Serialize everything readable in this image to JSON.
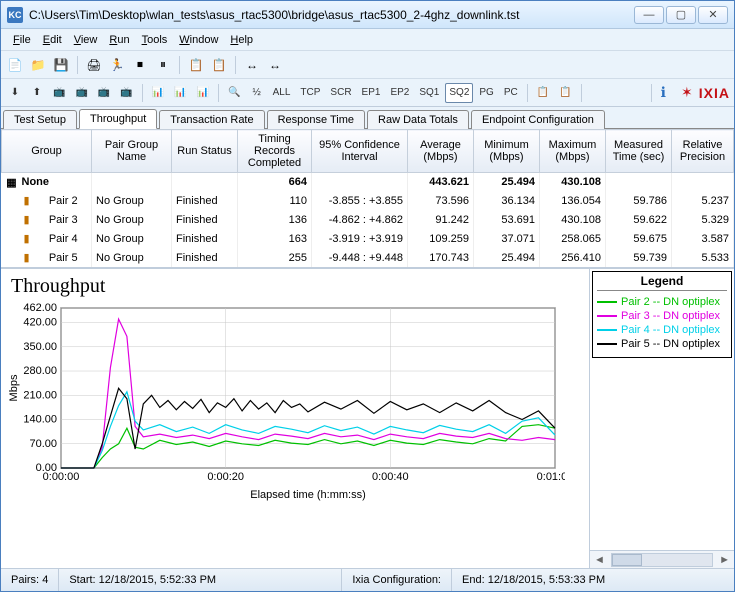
{
  "window": {
    "title": "C:\\Users\\Tim\\Desktop\\wlan_tests\\asus_rtac5300\\bridge\\asus_rtac5300_2-4ghz_downlink.tst",
    "app_abbrev": "KC"
  },
  "menu": {
    "items": [
      {
        "label": "File",
        "accel": "F"
      },
      {
        "label": "Edit",
        "accel": "E"
      },
      {
        "label": "View",
        "accel": "V"
      },
      {
        "label": "Run",
        "accel": "R"
      },
      {
        "label": "Tools",
        "accel": "T"
      },
      {
        "label": "Window",
        "accel": "W"
      },
      {
        "label": "Help",
        "accel": "H"
      }
    ]
  },
  "toolbar_icons": [
    "📄",
    "📁",
    "💾",
    "",
    "🖨",
    "🏃",
    "⏹",
    "⏸",
    "",
    "📋",
    "📋",
    "",
    "↔",
    "↔"
  ],
  "toolbar2": {
    "items": [
      "⬇",
      "⬆",
      "📺",
      "📺",
      "📺",
      "📺",
      "",
      "📊",
      "📊",
      "📊",
      "",
      "🔍",
      "½",
      "ALL",
      "TCP",
      "SCR",
      "EP1",
      "EP2",
      "SQ1",
      "SQ2",
      "PG",
      "PC",
      "",
      "📋",
      "📋",
      ""
    ],
    "selected_index": 19,
    "info_icon": "ℹ",
    "logo_text": "IXIA"
  },
  "tabs": {
    "items": [
      "Test Setup",
      "Throughput",
      "Transaction Rate",
      "Response Time",
      "Raw Data Totals",
      "Endpoint Configuration"
    ],
    "active": 1
  },
  "grid": {
    "columns": [
      "Group",
      "Pair Group Name",
      "Run Status",
      "Timing Records Completed",
      "95% Confidence Interval",
      "Average (Mbps)",
      "Minimum (Mbps)",
      "Maximum (Mbps)",
      "Measured Time (sec)",
      "Relative Precision"
    ],
    "totals": {
      "group": "None",
      "timing": "664",
      "avg": "443.621",
      "min": "25.494",
      "max": "430.108"
    },
    "rows": [
      {
        "pair": "Pair 2",
        "pg": "No Group",
        "status": "Finished",
        "timing": "110",
        "ci": "-3.855 : +3.855",
        "avg": "73.596",
        "min": "36.134",
        "max": "136.054",
        "time": "59.786",
        "prec": "5.237"
      },
      {
        "pair": "Pair 3",
        "pg": "No Group",
        "status": "Finished",
        "timing": "136",
        "ci": "-4.862 : +4.862",
        "avg": "91.242",
        "min": "53.691",
        "max": "430.108",
        "time": "59.622",
        "prec": "5.329"
      },
      {
        "pair": "Pair 4",
        "pg": "No Group",
        "status": "Finished",
        "timing": "163",
        "ci": "-3.919 : +3.919",
        "avg": "109.259",
        "min": "37.071",
        "max": "258.065",
        "time": "59.675",
        "prec": "3.587"
      },
      {
        "pair": "Pair 5",
        "pg": "No Group",
        "status": "Finished",
        "timing": "255",
        "ci": "-9.448 : +9.448",
        "avg": "170.743",
        "min": "25.494",
        "max": "256.410",
        "time": "59.739",
        "prec": "5.533"
      }
    ]
  },
  "chart": {
    "title": "Throughput",
    "ylabel": "Mbps",
    "xlabel": "Elapsed time (h:mm:ss)",
    "y_ticks": [
      "0.00",
      "70.00",
      "140.00",
      "210.00",
      "280.00",
      "350.00",
      "420.00",
      "462.00"
    ],
    "y_max": 462,
    "x_ticks": [
      "0:00:00",
      "0:00:20",
      "0:00:40",
      "0:01:00"
    ],
    "x_max": 60,
    "background_color": "#ffffff",
    "grid_color": "#c8c8c8",
    "axis_color": "#000000",
    "series": [
      {
        "name": "Pair 2 -- DN optiplex",
        "color": "#00c000",
        "data": [
          [
            0,
            0
          ],
          [
            4,
            0
          ],
          [
            5,
            30
          ],
          [
            6,
            55
          ],
          [
            7,
            70
          ],
          [
            8,
            115
          ],
          [
            9,
            60
          ],
          [
            10,
            55
          ],
          [
            12,
            80
          ],
          [
            14,
            68
          ],
          [
            16,
            75
          ],
          [
            18,
            62
          ],
          [
            20,
            78
          ],
          [
            22,
            70
          ],
          [
            24,
            65
          ],
          [
            26,
            80
          ],
          [
            28,
            72
          ],
          [
            30,
            68
          ],
          [
            32,
            82
          ],
          [
            34,
            70
          ],
          [
            36,
            78
          ],
          [
            38,
            65
          ],
          [
            40,
            80
          ],
          [
            42,
            72
          ],
          [
            44,
            68
          ],
          [
            46,
            82
          ],
          [
            48,
            75
          ],
          [
            50,
            70
          ],
          [
            52,
            85
          ],
          [
            54,
            78
          ],
          [
            56,
            120
          ],
          [
            58,
            125
          ],
          [
            60,
            115
          ]
        ]
      },
      {
        "name": "Pair 3 -- DN optiplex",
        "color": "#e000e0",
        "data": [
          [
            0,
            0
          ],
          [
            4,
            0
          ],
          [
            5,
            60
          ],
          [
            6,
            290
          ],
          [
            7,
            430
          ],
          [
            8,
            380
          ],
          [
            9,
            120
          ],
          [
            10,
            90
          ],
          [
            12,
            98
          ],
          [
            14,
            88
          ],
          [
            16,
            95
          ],
          [
            18,
            85
          ],
          [
            20,
            100
          ],
          [
            22,
            90
          ],
          [
            24,
            82
          ],
          [
            26,
            98
          ],
          [
            28,
            92
          ],
          [
            30,
            85
          ],
          [
            32,
            100
          ],
          [
            34,
            90
          ],
          [
            36,
            95
          ],
          [
            38,
            82
          ],
          [
            40,
            98
          ],
          [
            42,
            90
          ],
          [
            44,
            85
          ],
          [
            46,
            100
          ],
          [
            48,
            92
          ],
          [
            50,
            88
          ],
          [
            52,
            100
          ],
          [
            54,
            85
          ],
          [
            56,
            80
          ],
          [
            58,
            88
          ],
          [
            60,
            82
          ]
        ]
      },
      {
        "name": "Pair 4 -- DN optiplex",
        "color": "#00d0e8",
        "data": [
          [
            0,
            0
          ],
          [
            4,
            0
          ],
          [
            5,
            50
          ],
          [
            6,
            120
          ],
          [
            7,
            180
          ],
          [
            8,
            220
          ],
          [
            9,
            135
          ],
          [
            10,
            110
          ],
          [
            12,
            125
          ],
          [
            14,
            105
          ],
          [
            16,
            118
          ],
          [
            18,
            100
          ],
          [
            20,
            125
          ],
          [
            22,
            110
          ],
          [
            24,
            100
          ],
          [
            26,
            120
          ],
          [
            28,
            112
          ],
          [
            30,
            102
          ],
          [
            32,
            122
          ],
          [
            34,
            108
          ],
          [
            36,
            118
          ],
          [
            38,
            98
          ],
          [
            40,
            120
          ],
          [
            42,
            110
          ],
          [
            44,
            102
          ],
          [
            46,
            123
          ],
          [
            48,
            112
          ],
          [
            50,
            105
          ],
          [
            52,
            125
          ],
          [
            54,
            100
          ],
          [
            56,
            135
          ],
          [
            58,
            145
          ],
          [
            60,
            95
          ]
        ]
      },
      {
        "name": "Pair 5 -- DN optiplex",
        "color": "#000000",
        "data": [
          [
            0,
            0
          ],
          [
            4,
            0
          ],
          [
            5,
            70
          ],
          [
            6,
            150
          ],
          [
            7,
            230
          ],
          [
            8,
            200
          ],
          [
            9,
            55
          ],
          [
            10,
            185
          ],
          [
            11,
            210
          ],
          [
            12,
            175
          ],
          [
            13,
            195
          ],
          [
            14,
            168
          ],
          [
            15,
            192
          ],
          [
            16,
            172
          ],
          [
            17,
            198
          ],
          [
            18,
            160
          ],
          [
            19,
            188
          ],
          [
            20,
            175
          ],
          [
            21,
            200
          ],
          [
            22,
            165
          ],
          [
            23,
            195
          ],
          [
            24,
            170
          ],
          [
            25,
            188
          ],
          [
            26,
            160
          ],
          [
            27,
            195
          ],
          [
            28,
            175
          ],
          [
            29,
            185
          ],
          [
            30,
            162
          ],
          [
            32,
            190
          ],
          [
            34,
            170
          ],
          [
            36,
            195
          ],
          [
            38,
            158
          ],
          [
            40,
            192
          ],
          [
            42,
            168
          ],
          [
            44,
            185
          ],
          [
            46,
            160
          ],
          [
            48,
            188
          ],
          [
            50,
            165
          ],
          [
            52,
            195
          ],
          [
            54,
            160
          ],
          [
            56,
            140
          ],
          [
            58,
            165
          ],
          [
            60,
            115
          ]
        ]
      }
    ]
  },
  "legend": {
    "title": "Legend"
  },
  "status": {
    "pairs_label": "Pairs:",
    "pairs_value": "4",
    "start_label": "Start:",
    "start_value": "12/18/2015, 5:52:33 PM",
    "ixia_label": "Ixia Configuration:",
    "end_label": "End:",
    "end_value": "12/18/2015, 5:53:33 PM"
  }
}
